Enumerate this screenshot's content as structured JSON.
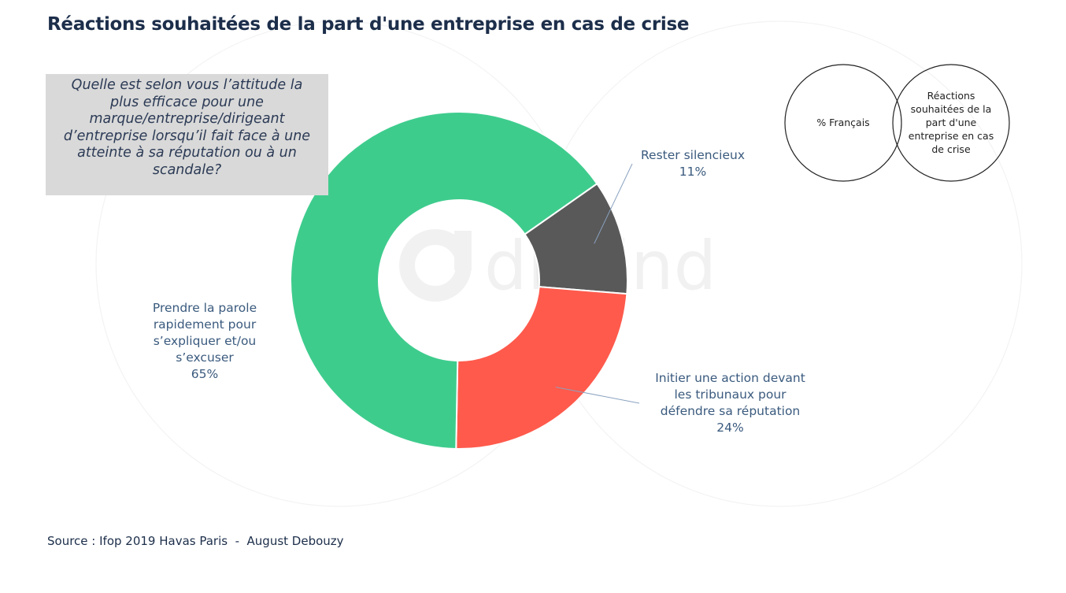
{
  "title": "Réactions souhaitées de la part d'une entreprise en cas de crise",
  "question": "Quelle est selon vous l’attitude la plus efficace pour une marque/entreprise/dirigeant d’entreprise lorsqu’il fait face à une atteinte à sa réputation ou à un scandale?",
  "source": "Source : Ifop 2019 Havas Paris  -  August Debouzy",
  "watermark": "dlmind",
  "legend": {
    "circle1": "% Français",
    "circle2": "Réactions souhaitées de la part d'une entreprise en cas de crise"
  },
  "colors": {
    "green": "#3ecc8d",
    "gray": "#595959",
    "red": "#ff5a4c",
    "title": "#1c2e4a",
    "label": "#3a5a7e"
  },
  "chart_data": {
    "type": "pie",
    "donut": true,
    "slices": [
      {
        "label_lines": [
          "Rester silencieux"
        ],
        "value": 11,
        "display": "11%",
        "color": "#595959"
      },
      {
        "label_lines": [
          "Initier une action devant",
          "les tribunaux pour",
          "défendre sa réputation"
        ],
        "value": 24,
        "display": "24%",
        "color": "#ff5a4c"
      },
      {
        "label_lines": [
          "Prendre la parole",
          "rapidement pour",
          "s’expliquer et/ou",
          "s’excuser"
        ],
        "value": 65,
        "display": "65%",
        "color": "#3ecc8d"
      }
    ]
  }
}
